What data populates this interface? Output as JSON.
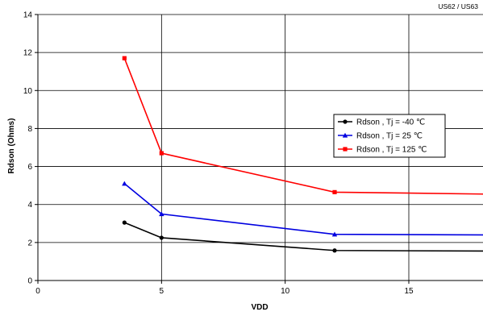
{
  "corner_label": "US62 / US63",
  "chart_data": {
    "type": "line",
    "title": "",
    "xlabel": "VDD",
    "ylabel": "Rdson (Ohms)",
    "xlim": [
      0,
      18
    ],
    "ylim": [
      0,
      14
    ],
    "x_ticks": [
      0,
      5,
      10,
      15
    ],
    "y_ticks": [
      0,
      2,
      4,
      6,
      8,
      10,
      12,
      14
    ],
    "grid": "vertical and horizontal major gridlines",
    "legend_position": "right-center",
    "series": [
      {
        "name": "Rdson , Tj = -40 ℃",
        "color": "#000000",
        "marker": "circle",
        "x": [
          3.5,
          5,
          12,
          18
        ],
        "y": [
          3.05,
          2.25,
          1.58,
          1.55
        ]
      },
      {
        "name": "Rdson , Tj = 25 ℃",
        "color": "#0000e0",
        "marker": "triangle",
        "x": [
          3.5,
          5,
          12,
          18
        ],
        "y": [
          5.1,
          3.5,
          2.43,
          2.4
        ]
      },
      {
        "name": "Rdson , Tj = 125 ℃",
        "color": "#ff0000",
        "marker": "square",
        "x": [
          3.5,
          5,
          12,
          18
        ],
        "y": [
          11.7,
          6.7,
          4.65,
          4.55
        ]
      }
    ]
  }
}
